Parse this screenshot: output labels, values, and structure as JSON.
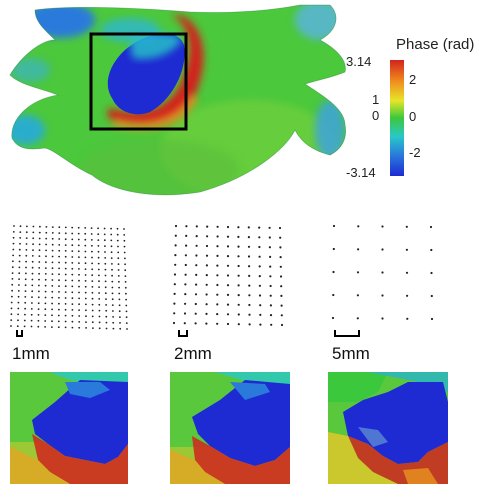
{
  "colorbar": {
    "title": "Phase (rad)",
    "max_label": "3.14",
    "min_label": "-3.14",
    "ticks_left": [
      "1",
      "0"
    ],
    "ticks_right": [
      "2",
      "0",
      "-2"
    ]
  },
  "panels": [
    {
      "scale_label": "1mm",
      "grid_cols": 18,
      "grid_rows": 18
    },
    {
      "scale_label": "2mm",
      "grid_cols": 11,
      "grid_rows": 11
    },
    {
      "scale_label": "5mm",
      "grid_cols": 5,
      "grid_rows": 5
    }
  ],
  "colors": {
    "phase_high": "#c8231e",
    "phase_mid": "#3cc83c",
    "phase_low": "#1e2ad2",
    "background": "#ffffff"
  }
}
